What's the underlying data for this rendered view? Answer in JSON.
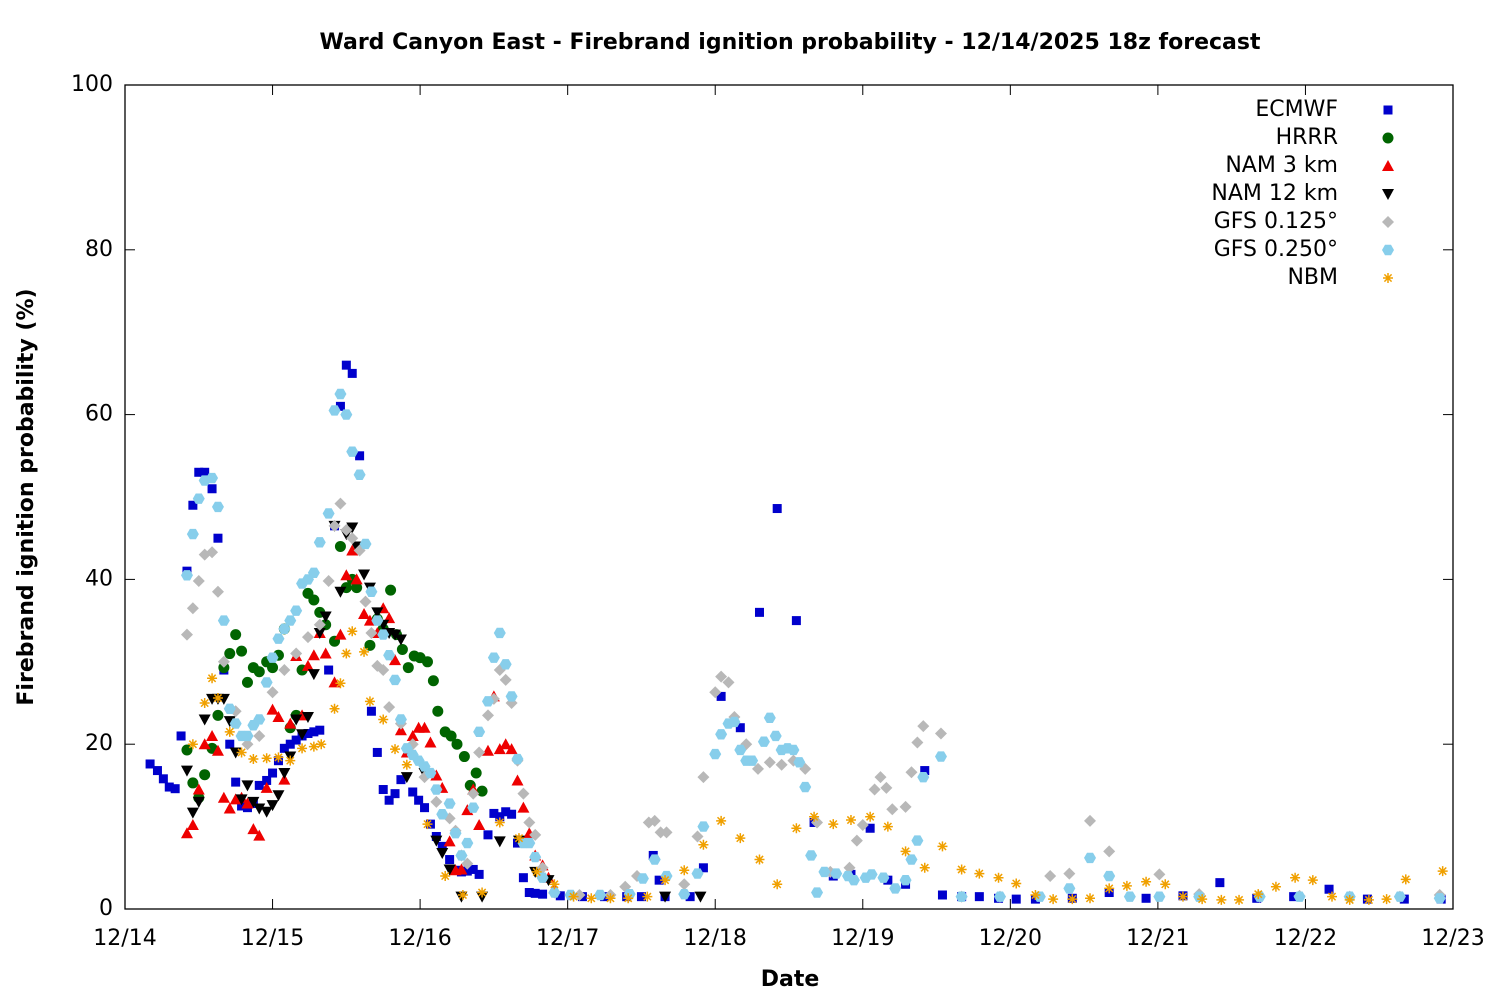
{
  "chart_data": {
    "type": "scatter",
    "title": "Ward Canyon East - Firebrand ignition probability - 12/14/2025 18z forecast",
    "x_label": "Date",
    "y_label": "Firebrand ignition probability (%)",
    "xlim": [
      0,
      9
    ],
    "ylim": [
      0,
      100
    ],
    "xticks": [
      {
        "value": 0,
        "label": "12/14"
      },
      {
        "value": 1,
        "label": "12/15"
      },
      {
        "value": 2,
        "label": "12/16"
      },
      {
        "value": 3,
        "label": "12/17"
      },
      {
        "value": 4,
        "label": "12/18"
      },
      {
        "value": 5,
        "label": "12/19"
      },
      {
        "value": 6,
        "label": "12/20"
      },
      {
        "value": 7,
        "label": "12/21"
      },
      {
        "value": 8,
        "label": "12/22"
      },
      {
        "value": 9,
        "label": "12/23"
      }
    ],
    "yticks": [
      0,
      20,
      40,
      60,
      80,
      100
    ],
    "grid": false,
    "legend": "upper right",
    "series": [
      {
        "name": "ECMWF",
        "color": "#0000cc",
        "marker": "square",
        "x": [
          0.17,
          0.22,
          0.26,
          0.3,
          0.34,
          0.38,
          0.42,
          0.46,
          0.5,
          0.54,
          0.59,
          0.63,
          0.67,
          0.71,
          0.75,
          0.79,
          0.83,
          0.87,
          0.91,
          0.96,
          1.0,
          1.04,
          1.08,
          1.12,
          1.16,
          1.2,
          1.24,
          1.28,
          1.32,
          1.38,
          1.42,
          1.46,
          1.5,
          1.54,
          1.59,
          1.67,
          1.71,
          1.75,
          1.79,
          1.83,
          1.87,
          1.95,
          1.99,
          2.03,
          2.07,
          2.11,
          2.15,
          2.2,
          2.24,
          2.28,
          2.32,
          2.36,
          2.4,
          2.46,
          2.5,
          2.54,
          2.58,
          2.62,
          2.66,
          2.7,
          2.74,
          2.78,
          2.83,
          2.95,
          3.1,
          3.25,
          3.4,
          3.5,
          3.58,
          3.62,
          3.66,
          3.83,
          3.92,
          4.04,
          4.17,
          4.3,
          4.42,
          4.55,
          4.67,
          4.8,
          4.92,
          5.05,
          5.17,
          5.29,
          5.42,
          5.54,
          5.67,
          5.79,
          5.92,
          6.04,
          6.17,
          6.42,
          6.67,
          6.92,
          7.17,
          7.42,
          7.67,
          7.92,
          8.16,
          8.42,
          8.67,
          8.92
        ],
        "values": [
          17.6,
          16.8,
          15.8,
          14.8,
          14.6,
          21,
          41,
          49,
          53,
          53,
          51,
          45,
          29,
          20,
          15.4,
          12.5,
          12.3,
          12.8,
          15,
          15.6,
          16.5,
          18,
          19.5,
          20,
          20.5,
          21,
          21.3,
          21.5,
          21.7,
          29,
          46.5,
          61,
          66,
          65,
          55,
          24,
          19,
          14.5,
          13.2,
          14,
          15.7,
          14.2,
          13.2,
          12.3,
          10.3,
          8.8,
          7.6,
          6,
          4.7,
          4.5,
          4.6,
          4.8,
          4.2,
          9,
          11.6,
          11.2,
          11.8,
          11.5,
          8,
          3.8,
          2,
          1.9,
          1.8,
          1.6,
          1.5,
          1.5,
          1.5,
          1.5,
          6.5,
          3.5,
          1.5,
          1.5,
          5,
          25.8,
          22,
          36,
          48.6,
          35,
          10.5,
          4,
          4.2,
          9.8,
          3.5,
          3,
          16.8,
          1.7,
          1.5,
          1.5,
          1.3,
          1.2,
          1.2,
          1.3,
          2,
          1.3,
          1.6,
          3.2,
          1.3,
          1.5,
          2.4,
          1.2,
          1.2,
          1.2
        ]
      },
      {
        "name": "HRRR",
        "color": "#006400",
        "marker": "circle",
        "x": [
          0.42,
          0.46,
          0.5,
          0.54,
          0.59,
          0.63,
          0.67,
          0.71,
          0.75,
          0.79,
          0.83,
          0.87,
          0.91,
          0.96,
          1.0,
          1.04,
          1.08,
          1.12,
          1.16,
          1.2,
          1.24,
          1.28,
          1.32,
          1.36,
          1.42,
          1.46,
          1.5,
          1.54,
          1.57,
          1.66,
          1.71,
          1.75,
          1.8,
          1.84,
          1.88,
          1.92,
          1.96,
          2.0,
          2.05,
          2.09,
          2.12,
          2.17,
          2.21,
          2.25,
          2.3,
          2.34,
          2.38,
          2.42
        ],
        "values": [
          19.3,
          15.3,
          13.5,
          16.3,
          19.5,
          23.5,
          29.3,
          31,
          33.3,
          31.3,
          27.5,
          29.3,
          28.8,
          30,
          29.3,
          30.8,
          34,
          22,
          23.5,
          29,
          38.3,
          37.5,
          36,
          34.5,
          32.5,
          44,
          39,
          40,
          39,
          32,
          35.2,
          34,
          38.7,
          33.3,
          31.5,
          29.3,
          30.7,
          30.5,
          30,
          27.7,
          24,
          21.5,
          21,
          20,
          18.5,
          15,
          16.5,
          14.3
        ]
      },
      {
        "name": "NAM 3 km",
        "color": "#ee0000",
        "marker": "triangle-up",
        "x": [
          0.42,
          0.46,
          0.5,
          0.54,
          0.59,
          0.63,
          0.67,
          0.71,
          0.75,
          0.79,
          0.83,
          0.87,
          0.91,
          0.96,
          1.0,
          1.04,
          1.08,
          1.12,
          1.16,
          1.2,
          1.24,
          1.28,
          1.32,
          1.36,
          1.42,
          1.46,
          1.5,
          1.54,
          1.57,
          1.62,
          1.66,
          1.71,
          1.75,
          1.79,
          1.83,
          1.87,
          1.91,
          1.95,
          1.99,
          2.03,
          2.07,
          2.11,
          2.15,
          2.2,
          2.24,
          2.28,
          2.32,
          2.36,
          2.4,
          2.46,
          2.5,
          2.54,
          2.58,
          2.62,
          2.66,
          2.7,
          2.74,
          2.78,
          2.83,
          2.87,
          2.91
        ],
        "values": [
          9.2,
          10.2,
          14.5,
          20,
          21,
          19.2,
          13.5,
          12.2,
          13.3,
          13.5,
          12.8,
          9.7,
          8.9,
          14.7,
          24.2,
          23.3,
          15.7,
          22.5,
          30.7,
          23.5,
          29.5,
          30.8,
          33.5,
          31,
          27.5,
          33.3,
          40.5,
          43.5,
          40,
          35.8,
          35,
          33.5,
          36.5,
          35.3,
          30.2,
          21.7,
          19,
          21,
          22,
          22,
          20.2,
          16.2,
          14.7,
          8.2,
          4.7,
          4.8,
          12,
          14.5,
          10.2,
          19.2,
          25.8,
          19.4,
          20,
          19.4,
          15.6,
          12.3,
          9.2,
          6.5,
          5.3,
          3.8,
          2.5
        ]
      },
      {
        "name": "NAM 12 km",
        "color": "#000000",
        "marker": "triangle-down",
        "x": [
          0.42,
          0.46,
          0.5,
          0.54,
          0.59,
          0.63,
          0.67,
          0.71,
          0.75,
          0.79,
          0.83,
          0.87,
          0.91,
          0.96,
          1.0,
          1.04,
          1.08,
          1.12,
          1.16,
          1.2,
          1.24,
          1.28,
          1.32,
          1.36,
          1.42,
          1.46,
          1.5,
          1.54,
          1.57,
          1.62,
          1.66,
          1.71,
          1.75,
          1.79,
          1.83,
          1.87,
          1.91,
          2.03,
          2.11,
          2.15,
          2.2,
          2.28,
          2.42,
          2.54,
          2.67,
          2.78,
          2.87,
          3.66,
          3.9
        ],
        "values": [
          16.8,
          11.7,
          13,
          23,
          25.5,
          25.5,
          25.5,
          22.8,
          19,
          13.3,
          15,
          13,
          12.2,
          11.8,
          12.6,
          13.8,
          16.5,
          18.5,
          23,
          21.2,
          23.3,
          28.5,
          33.5,
          35.5,
          46.5,
          38.5,
          45.5,
          46.3,
          44,
          40.6,
          39,
          36,
          34.5,
          33.5,
          33.3,
          32.7,
          16,
          16.5,
          8.3,
          6.8,
          4.8,
          1.5,
          1.5,
          8.2,
          8.3,
          4.5,
          3.5,
          1.5,
          1.5
        ]
      },
      {
        "name": "GFS 0.125°",
        "color": "#b8b8b8",
        "marker": "diamond",
        "x": [
          0.42,
          0.46,
          0.5,
          0.54,
          0.59,
          0.63,
          0.67,
          0.75,
          0.83,
          0.91,
          1.0,
          1.08,
          1.16,
          1.24,
          1.32,
          1.38,
          1.42,
          1.46,
          1.5,
          1.54,
          1.59,
          1.63,
          1.67,
          1.71,
          1.75,
          1.79,
          1.87,
          1.95,
          2.03,
          2.11,
          2.2,
          2.24,
          2.28,
          2.32,
          2.36,
          2.4,
          2.46,
          2.5,
          2.54,
          2.58,
          2.62,
          2.66,
          2.7,
          2.74,
          2.78,
          2.83,
          2.91,
          3.08,
          3.29,
          3.39,
          3.47,
          3.55,
          3.59,
          3.63,
          3.67,
          3.79,
          3.88,
          3.92,
          4.0,
          4.04,
          4.09,
          4.13,
          4.21,
          4.29,
          4.37,
          4.45,
          4.53,
          4.61,
          4.69,
          4.78,
          4.91,
          4.96,
          5.0,
          5.08,
          5.12,
          5.16,
          5.2,
          5.29,
          5.33,
          5.37,
          5.41,
          5.53,
          5.67,
          5.93,
          6.27,
          6.4,
          6.54,
          6.67,
          7.01,
          7.28,
          7.69,
          7.96,
          8.3,
          8.64,
          8.91
        ],
        "values": [
          33.3,
          36.5,
          39.8,
          43,
          43.3,
          38.5,
          30,
          24,
          20,
          21,
          26.3,
          29,
          31,
          33,
          34.5,
          39.8,
          46.5,
          49.2,
          46,
          45,
          43.5,
          37.3,
          33.5,
          29.5,
          29,
          24.5,
          22.5,
          20,
          16,
          13,
          11,
          9.5,
          6.5,
          5.5,
          14,
          19,
          23.5,
          25.5,
          29,
          27.8,
          25,
          18,
          14,
          10.5,
          9,
          5,
          2,
          1.7,
          1.7,
          2.7,
          4,
          10.5,
          10.7,
          9.3,
          9.3,
          3,
          8.8,
          16,
          26.3,
          28.2,
          27.5,
          23.3,
          20,
          17,
          17.8,
          17.5,
          18,
          17,
          10.5,
          4.5,
          5,
          8.3,
          10.2,
          14.5,
          16,
          14.7,
          12.1,
          12.4,
          16.6,
          20.2,
          22.2,
          21.3,
          1.5,
          1.5,
          4,
          4.3,
          10.7,
          7,
          4.2,
          1.8,
          1.5,
          1.6,
          1.5,
          1.5,
          1.7
        ]
      },
      {
        "name": "GFS 0.250°",
        "color": "#87ceeb",
        "marker": "hexagon",
        "x": [
          0.42,
          0.46,
          0.5,
          0.54,
          0.59,
          0.63,
          0.67,
          0.71,
          0.75,
          0.79,
          0.83,
          0.87,
          0.91,
          0.96,
          1.0,
          1.04,
          1.08,
          1.12,
          1.16,
          1.2,
          1.24,
          1.28,
          1.32,
          1.38,
          1.42,
          1.46,
          1.5,
          1.54,
          1.59,
          1.63,
          1.67,
          1.71,
          1.75,
          1.79,
          1.83,
          1.87,
          1.91,
          1.95,
          1.99,
          2.03,
          2.07,
          2.11,
          2.15,
          2.2,
          2.24,
          2.28,
          2.32,
          2.36,
          2.4,
          2.46,
          2.5,
          2.54,
          2.58,
          2.62,
          2.66,
          2.7,
          2.74,
          2.78,
          2.83,
          2.91,
          3.02,
          3.22,
          3.42,
          3.51,
          3.59,
          3.67,
          3.79,
          3.88,
          3.92,
          4.0,
          4.04,
          4.09,
          4.13,
          4.17,
          4.21,
          4.25,
          4.33,
          4.37,
          4.41,
          4.45,
          4.49,
          4.53,
          4.57,
          4.61,
          4.65,
          4.69,
          4.74,
          4.82,
          4.9,
          4.94,
          5.02,
          5.06,
          5.14,
          5.22,
          5.29,
          5.33,
          5.37,
          5.41,
          5.53,
          5.67,
          5.93,
          6.2,
          6.4,
          6.54,
          6.67,
          6.81,
          7.01,
          7.28,
          7.69,
          7.96,
          8.3,
          8.64,
          8.91
        ],
        "values": [
          40.5,
          45.5,
          49.8,
          52,
          52.3,
          48.8,
          35,
          24.3,
          22.5,
          21,
          21,
          22.3,
          23,
          27.5,
          30.5,
          32.8,
          34,
          35,
          36.2,
          39.5,
          40,
          40.8,
          44.5,
          48,
          60.5,
          62.5,
          60,
          55.5,
          52.7,
          44.3,
          38.5,
          35,
          33.3,
          30.8,
          27.8,
          23,
          19.5,
          18.7,
          18,
          17.3,
          16.5,
          14.5,
          11.5,
          12.8,
          9.2,
          6.5,
          8,
          12.3,
          21.5,
          25.2,
          30.5,
          33.5,
          29.7,
          25.8,
          18.2,
          8,
          8,
          6.3,
          3.8,
          2,
          1.7,
          1.7,
          1.8,
          3.7,
          6,
          4,
          1.8,
          4.3,
          10,
          18.8,
          21.2,
          22.5,
          22.7,
          19.3,
          18,
          18,
          20.3,
          23.2,
          21,
          19.3,
          19.5,
          19.3,
          17.8,
          14.8,
          6.5,
          2,
          4.5,
          4.3,
          4,
          3.5,
          3.8,
          4.2,
          3.8,
          2.5,
          3.5,
          6,
          8.3,
          16,
          18.5,
          1.5,
          1.5,
          1.5,
          2.5,
          6.2,
          4,
          1.5,
          1.5,
          1.5,
          1.5,
          1.5,
          1.5,
          1.5,
          1.3
        ]
      },
      {
        "name": "NBM",
        "color": "#f0a000",
        "marker": "asterisk",
        "x": [
          0.46,
          0.54,
          0.59,
          0.63,
          0.71,
          0.79,
          0.87,
          0.96,
          1.04,
          1.12,
          1.2,
          1.28,
          1.33,
          1.42,
          1.46,
          1.5,
          1.54,
          1.62,
          1.66,
          1.75,
          1.83,
          1.91,
          2.05,
          2.17,
          2.29,
          2.42,
          2.54,
          2.67,
          2.79,
          2.91,
          3.04,
          3.16,
          3.29,
          3.41,
          3.54,
          3.66,
          3.79,
          3.92,
          4.04,
          4.17,
          4.3,
          4.42,
          4.55,
          4.67,
          4.8,
          4.92,
          5.05,
          5.17,
          5.29,
          5.42,
          5.54,
          5.67,
          5.79,
          5.92,
          6.04,
          6.17,
          6.29,
          6.42,
          6.54,
          6.67,
          6.79,
          6.92,
          7.05,
          7.17,
          7.3,
          7.43,
          7.55,
          7.68,
          7.8,
          7.93,
          8.05,
          8.18,
          8.3,
          8.43,
          8.55,
          8.68,
          8.93
        ],
        "values": [
          20,
          25,
          28,
          25.6,
          21.5,
          19,
          18.2,
          18.3,
          18.4,
          18,
          19.5,
          19.7,
          20,
          24.3,
          27.4,
          31,
          33.7,
          31.2,
          25.2,
          23,
          19.4,
          17.5,
          10.3,
          4,
          1.7,
          2,
          10.5,
          8.6,
          4.5,
          3,
          1.5,
          1.3,
          1.3,
          1.3,
          1.5,
          3.5,
          4.7,
          7.8,
          10.7,
          8.6,
          6,
          3,
          9.8,
          11.2,
          10.3,
          10.8,
          11.2,
          10,
          7,
          5,
          7.6,
          4.8,
          4.3,
          3.8,
          3.1,
          1.7,
          1.2,
          1.2,
          1.3,
          2.5,
          2.8,
          3.3,
          3,
          1.5,
          1.2,
          1.1,
          1.1,
          1.8,
          2.7,
          3.8,
          3.5,
          1.5,
          1.1,
          1.1,
          1.2,
          3.6,
          4.6
        ]
      }
    ]
  }
}
